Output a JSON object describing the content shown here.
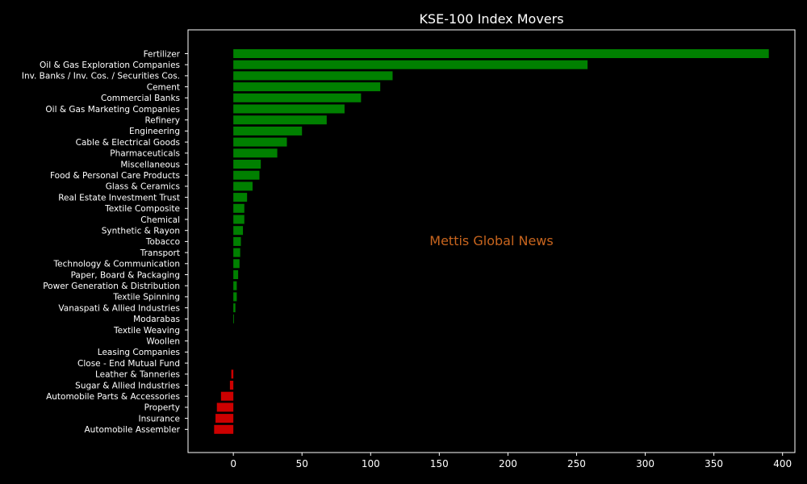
{
  "chart_data": {
    "type": "bar",
    "orientation": "horizontal",
    "title": "KSE-100 Index Movers",
    "watermark": "Mettis Global News",
    "xlabel": "",
    "ylabel": "",
    "xlim": [
      -33,
      409
    ],
    "xticks": [
      0,
      50,
      100,
      150,
      200,
      250,
      300,
      350,
      400
    ],
    "grid": false,
    "categories": [
      "Fertilizer",
      "Oil & Gas Exploration Companies",
      "Inv. Banks / Inv. Cos. / Securities Cos.",
      "Cement",
      "Commercial Banks",
      "Oil & Gas Marketing Companies",
      "Refinery",
      "Engineering",
      "Cable & Electrical Goods",
      "Pharmaceuticals",
      "Miscellaneous",
      "Food & Personal Care Products",
      "Glass & Ceramics",
      "Real Estate Investment Trust",
      "Textile Composite",
      "Chemical",
      "Synthetic & Rayon",
      "Tobacco",
      "Transport",
      "Technology & Communication",
      "Paper, Board & Packaging",
      "Power Generation & Distribution",
      "Textile Spinning",
      "Vanaspati & Allied Industries",
      "Modarabas",
      "Textile Weaving",
      "Woollen",
      "Leasing Companies",
      "Close - End Mutual Fund",
      "Leather & Tanneries",
      "Sugar & Allied Industries",
      "Automobile Parts & Accessories",
      "Property",
      "Insurance",
      "Automobile Assembler"
    ],
    "values": [
      390,
      258,
      116,
      107,
      93,
      81,
      68,
      50,
      39,
      32,
      20,
      19,
      14,
      10,
      8,
      8,
      7,
      5.5,
      5,
      4.5,
      3.5,
      2.5,
      2.5,
      1.5,
      0.5,
      0,
      0,
      0,
      0,
      -1.5,
      -2.5,
      -9,
      -12,
      -13,
      -14
    ],
    "colors": {
      "positive": "#008000",
      "negative": "#cc0000",
      "background": "#000000",
      "frame": "#ffffff",
      "text": "#ffffff",
      "watermark": "#c8651e"
    }
  }
}
